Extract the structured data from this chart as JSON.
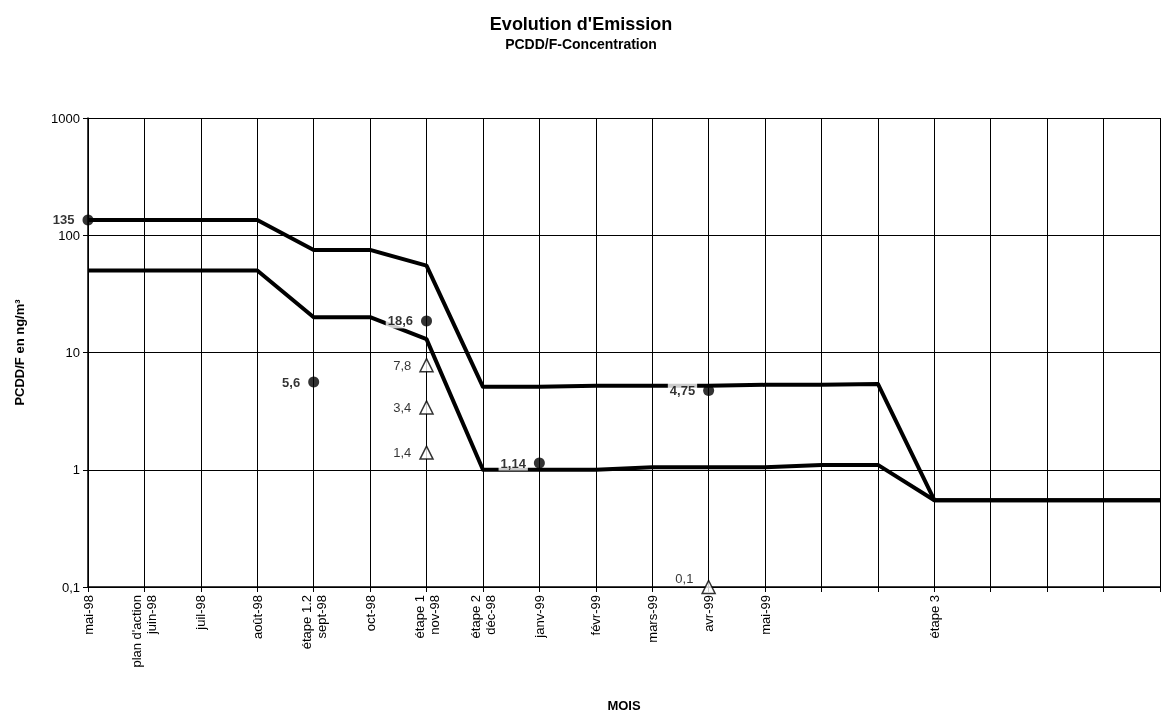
{
  "chart_data": {
    "type": "line",
    "title": "Evolution d'Emission",
    "subtitle": "PCDD/F-Concentration",
    "xlabel": "MOIS",
    "ylabel": "PCDD/F en ng/m³",
    "categories": [
      "mai-98",
      "plan d'action\njuin-98",
      "juil-98",
      "août-98",
      "étape 1.2\nsept-98",
      "oct-98",
      "étape 1\nnov-98",
      "étape 2\ndéc-98",
      "janv-99",
      "févr-99",
      "mars-99",
      "avr-99",
      "mai-99",
      null,
      null,
      "étape 3",
      null,
      null,
      null,
      null
    ],
    "series": [
      {
        "color": "#000000",
        "marker": "none",
        "values": [
          135,
          135,
          135,
          135,
          75,
          75,
          55,
          5.1,
          5.1,
          5.2,
          5.2,
          5.2,
          5.3,
          5.3,
          5.4,
          0.55,
          0.55,
          0.55,
          0.55,
          0.55
        ]
      },
      {
        "color": "#000000",
        "marker": "none",
        "values": [
          50,
          50,
          50,
          50,
          20,
          20,
          13,
          1.0,
          1.0,
          1.0,
          1.05,
          1.05,
          1.05,
          1.1,
          1.1,
          0.55,
          0.55,
          0.55,
          0.55,
          0.55
        ]
      },
      {
        "type": "scatter",
        "color": "#000000",
        "marker": "circle",
        "x": [
          "mai-98",
          "étape 1.2\nsept-98",
          "étape 1\nnov-98",
          "janv-99",
          "avr-99"
        ],
        "values": [
          135,
          5.6,
          18.6,
          1.14,
          4.75
        ],
        "value_labels": [
          "135",
          "5,6",
          "18,6",
          "1,14",
          "4,75"
        ]
      },
      {
        "type": "scatter",
        "color": "#000000",
        "marker": "triangle",
        "x": [
          "étape 1\nnov-98",
          "étape 1\nnov-98",
          "étape 1\nnov-98",
          "avr-99"
        ],
        "values": [
          7.8,
          3.4,
          1.4,
          0.1
        ],
        "value_labels": [
          "7,8",
          "3,4",
          "1,4",
          "0,1"
        ]
      }
    ],
    "log": "y",
    "ylim": [
      0.1,
      1000
    ],
    "yticks": [
      {
        "value": 0.1,
        "label": "0,1"
      },
      1,
      10,
      100,
      1000
    ],
    "grid": true
  }
}
